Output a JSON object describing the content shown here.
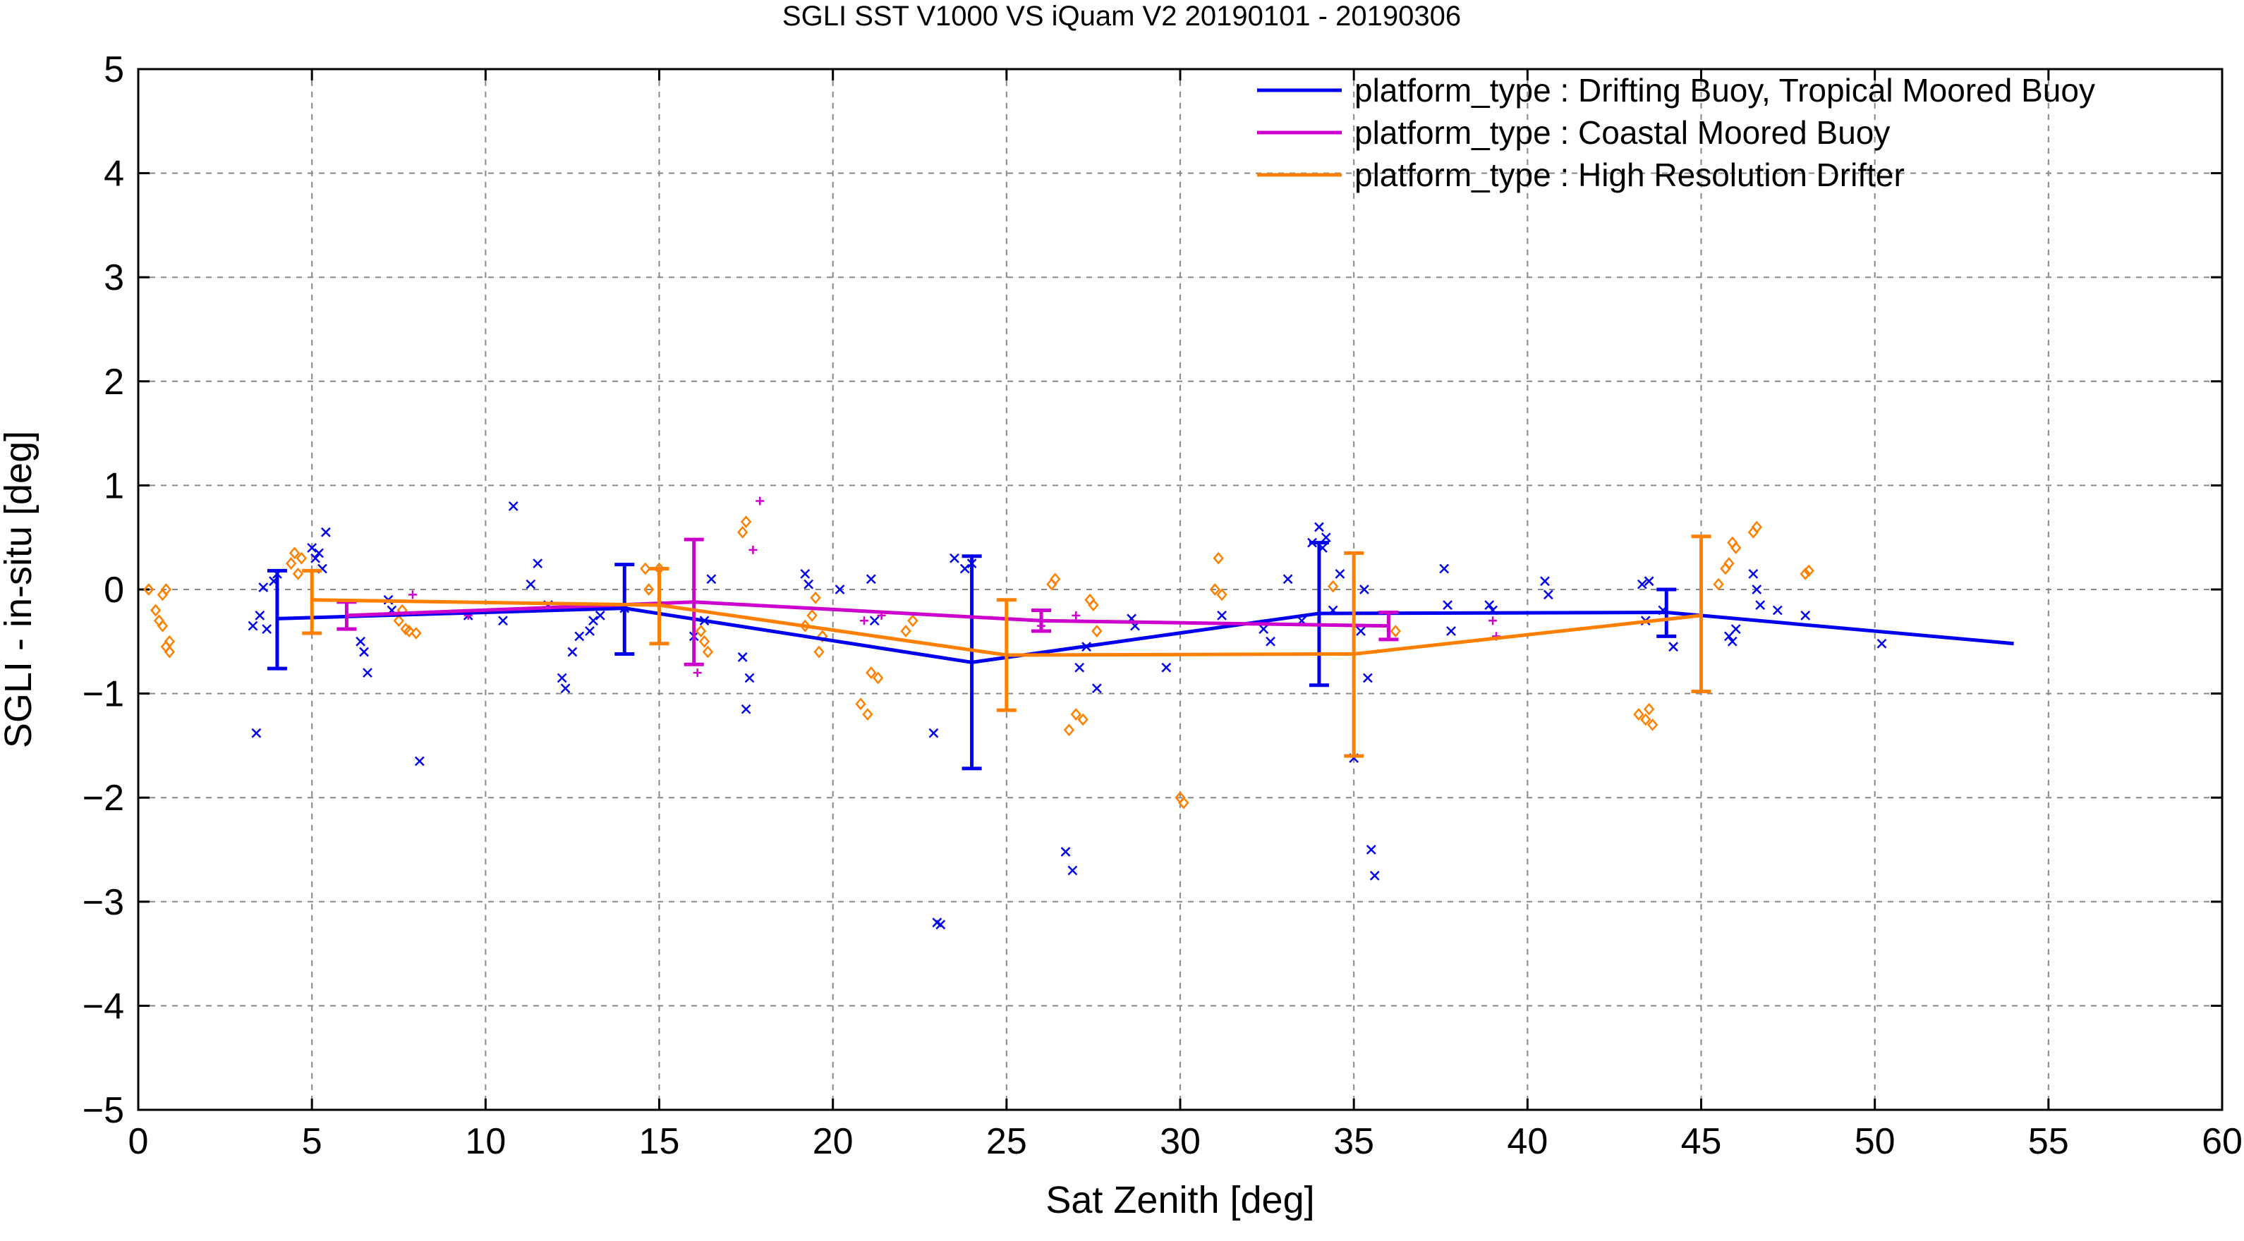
{
  "chart_data": {
    "type": "line",
    "title": "SGLI SST V1000 VS iQuam V2 20190101 - 20190306",
    "xlabel": "Sat Zenith [deg]",
    "ylabel": "SGLI - in-situ [deg]",
    "xlim": [
      0,
      60
    ],
    "ylim": [
      -5,
      5
    ],
    "x_ticks": [
      0,
      5,
      10,
      15,
      20,
      25,
      30,
      35,
      40,
      45,
      50,
      55,
      60
    ],
    "y_ticks": [
      -5,
      -4,
      -3,
      -2,
      -1,
      0,
      1,
      2,
      3,
      4,
      5
    ],
    "x_tick_labels": [
      "0",
      "5",
      "10",
      "15",
      "20",
      "25",
      "30",
      "35",
      "40",
      "45",
      "50",
      "55",
      "60"
    ],
    "y_tick_labels": [
      "−5",
      "−4",
      "−3",
      "−2",
      "−1",
      "0",
      "1",
      "2",
      "3",
      "4",
      "5"
    ],
    "grid": true,
    "legend_position": "top-right",
    "series": [
      {
        "name": "platform_type : Drifting Buoy, Tropical Moored Buoy",
        "color": "#0000ee",
        "marker": "x",
        "line": [
          [
            4,
            -0.28
          ],
          [
            14,
            -0.18
          ],
          [
            24,
            -0.7
          ],
          [
            34,
            -0.23
          ],
          [
            44,
            -0.22
          ],
          [
            54,
            -0.52
          ]
        ],
        "error_bars": [
          [
            4,
            -0.28,
            -0.76,
            0.18
          ],
          [
            14,
            -0.18,
            -0.62,
            0.24
          ],
          [
            24,
            -0.7,
            -1.72,
            0.32
          ],
          [
            34,
            -0.23,
            -0.92,
            0.45
          ],
          [
            44,
            -0.22,
            -0.45,
            0.0
          ]
        ],
        "points": [
          [
            3.3,
            -0.35
          ],
          [
            3.4,
            -1.38
          ],
          [
            3.5,
            -0.25
          ],
          [
            3.6,
            0.02
          ],
          [
            3.7,
            -0.38
          ],
          [
            3.9,
            0.08
          ],
          [
            4.0,
            0.15
          ],
          [
            5.0,
            0.4
          ],
          [
            5.1,
            0.3
          ],
          [
            5.2,
            0.35
          ],
          [
            5.3,
            0.2
          ],
          [
            5.4,
            0.55
          ],
          [
            6.4,
            -0.5
          ],
          [
            6.5,
            -0.6
          ],
          [
            6.6,
            -0.8
          ],
          [
            7.2,
            -0.1
          ],
          [
            7.3,
            -0.2
          ],
          [
            8.1,
            -1.65
          ],
          [
            9.5,
            -0.25
          ],
          [
            10.5,
            -0.3
          ],
          [
            10.8,
            0.8
          ],
          [
            11.3,
            0.05
          ],
          [
            11.5,
            0.25
          ],
          [
            11.8,
            -0.15
          ],
          [
            12.2,
            -0.85
          ],
          [
            12.3,
            -0.95
          ],
          [
            12.5,
            -0.6
          ],
          [
            12.7,
            -0.45
          ],
          [
            13.0,
            -0.4
          ],
          [
            13.1,
            -0.3
          ],
          [
            13.3,
            -0.25
          ],
          [
            14.0,
            -0.18
          ],
          [
            16.0,
            -0.45
          ],
          [
            16.3,
            -0.3
          ],
          [
            16.5,
            0.1
          ],
          [
            17.4,
            -0.65
          ],
          [
            17.5,
            -1.15
          ],
          [
            17.6,
            -0.85
          ],
          [
            19.2,
            0.15
          ],
          [
            19.3,
            0.05
          ],
          [
            20.2,
            0.0
          ],
          [
            21.1,
            0.1
          ],
          [
            21.2,
            -0.3
          ],
          [
            22.9,
            -1.38
          ],
          [
            23.0,
            -3.2
          ],
          [
            23.1,
            -3.22
          ],
          [
            23.5,
            0.3
          ],
          [
            23.8,
            0.2
          ],
          [
            24.0,
            0.25
          ],
          [
            26.7,
            -2.52
          ],
          [
            26.9,
            -2.7
          ],
          [
            27.1,
            -0.75
          ],
          [
            27.3,
            -0.55
          ],
          [
            27.6,
            -0.95
          ],
          [
            28.6,
            -0.28
          ],
          [
            28.7,
            -0.35
          ],
          [
            29.6,
            -0.75
          ],
          [
            31.2,
            -0.25
          ],
          [
            32.4,
            -0.38
          ],
          [
            32.6,
            -0.5
          ],
          [
            33.1,
            0.1
          ],
          [
            33.5,
            -0.3
          ],
          [
            33.8,
            0.45
          ],
          [
            34.0,
            0.6
          ],
          [
            34.1,
            0.4
          ],
          [
            34.2,
            0.5
          ],
          [
            34.4,
            -0.2
          ],
          [
            34.6,
            0.15
          ],
          [
            35.0,
            -1.62
          ],
          [
            35.2,
            -0.4
          ],
          [
            35.3,
            0.0
          ],
          [
            35.4,
            -0.85
          ],
          [
            35.5,
            -2.5
          ],
          [
            35.6,
            -2.75
          ],
          [
            37.6,
            0.2
          ],
          [
            37.7,
            -0.15
          ],
          [
            37.8,
            -0.4
          ],
          [
            38.9,
            -0.15
          ],
          [
            39.0,
            -0.2
          ],
          [
            40.5,
            0.08
          ],
          [
            40.6,
            -0.05
          ],
          [
            43.3,
            0.05
          ],
          [
            43.4,
            -0.3
          ],
          [
            43.5,
            0.08
          ],
          [
            43.9,
            -0.2
          ],
          [
            44.2,
            -0.55
          ],
          [
            45.8,
            -0.45
          ],
          [
            45.9,
            -0.5
          ],
          [
            46.0,
            -0.38
          ],
          [
            46.5,
            0.15
          ],
          [
            46.6,
            0.0
          ],
          [
            46.7,
            -0.15
          ],
          [
            47.2,
            -0.2
          ],
          [
            48.0,
            -0.25
          ],
          [
            50.2,
            -0.52
          ]
        ]
      },
      {
        "name": "platform_type : Coastal Moored Buoy",
        "color": "#cc00cc",
        "marker": "+",
        "line": [
          [
            6,
            -0.25
          ],
          [
            16,
            -0.12
          ],
          [
            26,
            -0.3
          ],
          [
            36,
            -0.35
          ]
        ],
        "error_bars": [
          [
            6,
            -0.25,
            -0.38,
            -0.12
          ],
          [
            16,
            -0.12,
            -0.72,
            0.48
          ],
          [
            26,
            -0.3,
            -0.4,
            -0.2
          ],
          [
            36,
            -0.35,
            -0.48,
            -0.22
          ]
        ],
        "points": [
          [
            7.9,
            -0.05
          ],
          [
            9.5,
            -0.25
          ],
          [
            16.1,
            -0.8
          ],
          [
            17.7,
            0.38
          ],
          [
            17.9,
            0.85
          ],
          [
            20.9,
            -0.3
          ],
          [
            21.4,
            -0.25
          ],
          [
            26.0,
            -0.35
          ],
          [
            27.0,
            -0.25
          ],
          [
            39.0,
            -0.3
          ],
          [
            39.1,
            -0.45
          ]
        ]
      },
      {
        "name": "platform_type : High Resolution Drifter",
        "color": "#ff8000",
        "marker": "diamond",
        "line": [
          [
            5,
            -0.1
          ],
          [
            15,
            -0.15
          ],
          [
            25,
            -0.63
          ],
          [
            35,
            -0.62
          ],
          [
            45,
            -0.25
          ]
        ],
        "error_bars": [
          [
            5,
            -0.1,
            -0.42,
            0.18
          ],
          [
            15,
            -0.15,
            -0.52,
            0.2
          ],
          [
            25,
            -0.63,
            -1.16,
            -0.1
          ],
          [
            35,
            -0.62,
            -1.6,
            0.35
          ],
          [
            45,
            -0.25,
            -0.98,
            0.51
          ]
        ],
        "points": [
          [
            0.3,
            0.0
          ],
          [
            0.5,
            -0.2
          ],
          [
            0.6,
            -0.3
          ],
          [
            0.7,
            -0.05
          ],
          [
            0.8,
            0.0
          ],
          [
            0.9,
            -0.5
          ],
          [
            0.9,
            -0.6
          ],
          [
            0.8,
            -0.55
          ],
          [
            0.7,
            -0.35
          ],
          [
            4.4,
            0.25
          ],
          [
            4.5,
            0.35
          ],
          [
            4.6,
            0.15
          ],
          [
            4.7,
            0.3
          ],
          [
            7.5,
            -0.3
          ],
          [
            7.6,
            -0.2
          ],
          [
            7.7,
            -0.38
          ],
          [
            7.8,
            -0.4
          ],
          [
            8.0,
            -0.42
          ],
          [
            14.6,
            0.2
          ],
          [
            14.7,
            0.0
          ],
          [
            15.0,
            0.2
          ],
          [
            16.2,
            -0.4
          ],
          [
            16.3,
            -0.5
          ],
          [
            16.4,
            -0.6
          ],
          [
            17.4,
            0.55
          ],
          [
            17.5,
            0.65
          ],
          [
            19.2,
            -0.35
          ],
          [
            19.4,
            -0.25
          ],
          [
            19.5,
            -0.08
          ],
          [
            19.6,
            -0.6
          ],
          [
            19.7,
            -0.45
          ],
          [
            20.8,
            -1.1
          ],
          [
            21.0,
            -1.2
          ],
          [
            21.1,
            -0.8
          ],
          [
            21.3,
            -0.85
          ],
          [
            22.1,
            -0.4
          ],
          [
            22.3,
            -0.3
          ],
          [
            26.3,
            0.05
          ],
          [
            26.4,
            0.1
          ],
          [
            26.8,
            -1.35
          ],
          [
            27.0,
            -1.2
          ],
          [
            27.2,
            -1.25
          ],
          [
            27.4,
            -0.1
          ],
          [
            27.5,
            -0.15
          ],
          [
            27.6,
            -0.4
          ],
          [
            30.0,
            -2.0
          ],
          [
            30.1,
            -2.05
          ],
          [
            31.0,
            0.0
          ],
          [
            31.1,
            0.3
          ],
          [
            31.2,
            -0.05
          ],
          [
            34.4,
            0.03
          ],
          [
            36.2,
            -0.4
          ],
          [
            43.2,
            -1.2
          ],
          [
            43.4,
            -1.25
          ],
          [
            43.5,
            -1.15
          ],
          [
            43.6,
            -1.3
          ],
          [
            45.5,
            0.05
          ],
          [
            45.7,
            0.2
          ],
          [
            45.8,
            0.25
          ],
          [
            45.9,
            0.45
          ],
          [
            46.0,
            0.4
          ],
          [
            46.5,
            0.55
          ],
          [
            46.6,
            0.6
          ],
          [
            48.0,
            0.15
          ],
          [
            48.1,
            0.18
          ]
        ]
      }
    ]
  }
}
